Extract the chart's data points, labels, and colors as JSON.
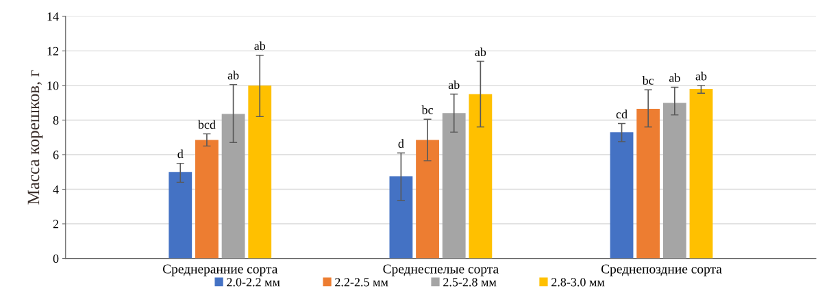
{
  "chart_data": {
    "type": "bar",
    "ylabel": "Масса корешков, г",
    "categories": [
      "Среднеранние сорта",
      "Среднеспелые сорта",
      "Среднепоздние сорта"
    ],
    "series": [
      {
        "name": "2.0-2.2 мм",
        "color": "#4472c4",
        "values": [
          5.0,
          4.75,
          7.3
        ],
        "errors": [
          [
            4.4,
            5.5
          ],
          [
            3.35,
            6.1
          ],
          [
            6.75,
            7.8
          ]
        ],
        "value_labels": [
          "d",
          "d",
          "cd"
        ]
      },
      {
        "name": "2.2-2.5 мм",
        "color": "#ed7d31",
        "values": [
          6.85,
          6.85,
          8.65
        ],
        "errors": [
          [
            6.5,
            7.2
          ],
          [
            5.65,
            8.05
          ],
          [
            7.6,
            9.75
          ]
        ],
        "value_labels": [
          "bcd",
          "bc",
          "bc"
        ]
      },
      {
        "name": "2.5-2.8 мм",
        "color": "#a5a5a5",
        "values": [
          8.35,
          8.4,
          9.0
        ],
        "errors": [
          [
            6.7,
            10.05
          ],
          [
            7.3,
            9.5
          ],
          [
            8.3,
            9.9
          ]
        ],
        "value_labels": [
          "ab",
          "ab",
          "ab"
        ]
      },
      {
        "name": "2.8-3.0 мм",
        "color": "#ffc000",
        "values": [
          10.0,
          9.5,
          9.8
        ],
        "errors": [
          [
            8.2,
            11.75
          ],
          [
            7.6,
            11.4
          ],
          [
            9.55,
            10.0
          ]
        ],
        "value_labels": [
          "ab",
          "ab",
          "ab"
        ]
      }
    ],
    "ylim": [
      0,
      14
    ],
    "yticks": [
      0,
      2,
      4,
      6,
      8,
      10,
      12,
      14
    ],
    "grid": "y",
    "legend": "bottom"
  }
}
